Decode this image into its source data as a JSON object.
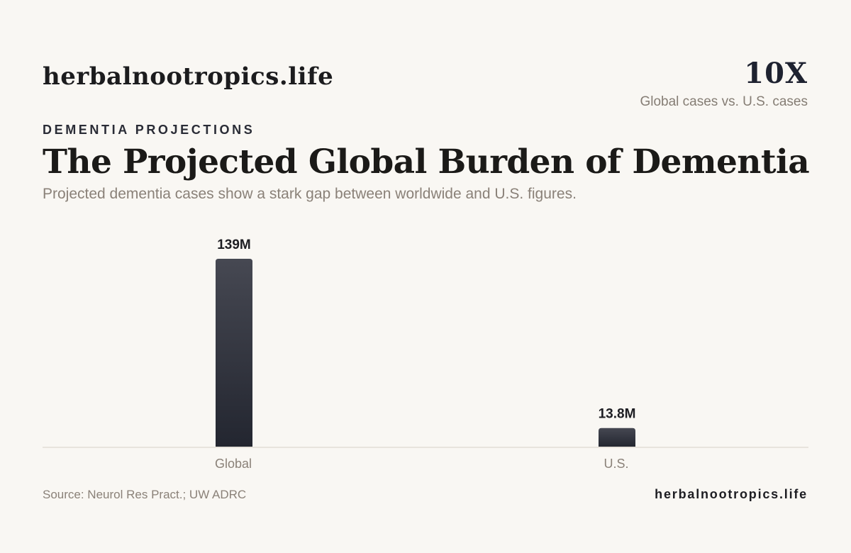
{
  "header": {
    "brand": "herbalnootropics.life",
    "stat_value": "10X",
    "stat_caption": "Global cases vs. U.S. cases"
  },
  "chart_data": {
    "type": "bar",
    "eyebrow": "DEMENTIA PROJECTIONS",
    "title": "The Projected Global Burden of Dementia",
    "subtitle": "Projected dementia cases show a stark gap between worldwide and U.S. figures.",
    "categories": [
      "Global",
      "U.S."
    ],
    "values": [
      139,
      13.8
    ],
    "value_labels": [
      "139M",
      "13.8M"
    ],
    "unit": "M",
    "ylim": [
      0,
      139
    ],
    "grid": false,
    "legend": "none",
    "colors": {
      "bar_top": "#464852",
      "bar_bottom": "#232630",
      "axis": "#e2ddd6",
      "label": "#8a8178",
      "value_label": "#1d1d22"
    }
  },
  "footer": {
    "source": "Source: Neurol Res Pract.; UW ADRC",
    "brand": "herbalnootropics.life"
  }
}
